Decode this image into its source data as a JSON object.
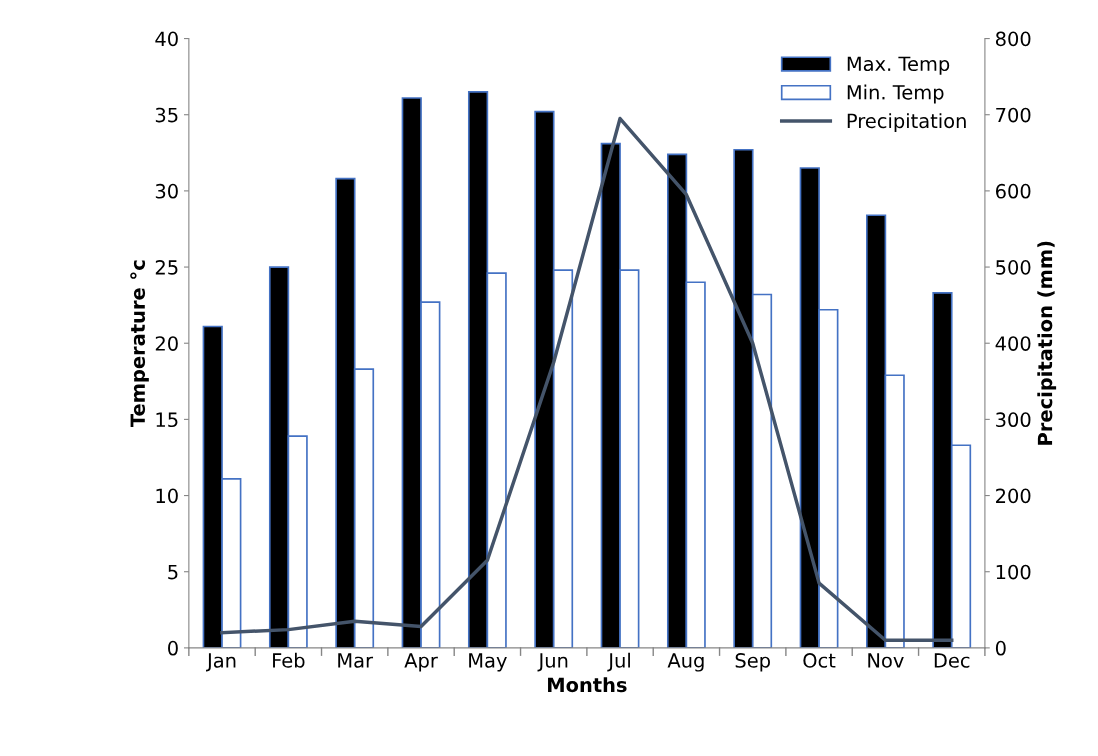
{
  "chart_data": {
    "type": "bar",
    "xlabel": "Months",
    "ylabel": "Temperature °c",
    "y2label": "Precipitation (mm)",
    "categories": [
      "Jan",
      "Feb",
      "Mar",
      "Apr",
      "May",
      "Jun",
      "Jul",
      "Aug",
      "Sep",
      "Oct",
      "Nov",
      "Dec"
    ],
    "series": [
      {
        "name": "Max. Temp",
        "color": "#000000",
        "values": [
          21.1,
          25.0,
          30.8,
          36.1,
          36.5,
          35.2,
          33.1,
          32.4,
          32.7,
          31.5,
          28.4,
          23.3
        ]
      },
      {
        "name": "Min. Temp",
        "color": "#ffffff",
        "values": [
          11.1,
          13.9,
          18.3,
          22.7,
          24.6,
          24.8,
          24.8,
          24.0,
          23.2,
          22.2,
          17.9,
          13.3
        ]
      },
      {
        "name": "Precipitation",
        "type": "line",
        "axis": "y2",
        "color": "#44546a",
        "values": [
          20,
          24,
          35,
          28,
          115,
          375,
          695,
          595,
          400,
          85,
          10,
          10
        ]
      }
    ],
    "ylim": [
      0,
      40
    ],
    "yticks": [
      0,
      5,
      10,
      15,
      20,
      25,
      30,
      35,
      40
    ],
    "y2lim": [
      0,
      800
    ],
    "y2ticks": [
      0,
      100,
      200,
      300,
      400,
      500,
      600,
      700,
      800
    ],
    "legend": "top right",
    "grid": false
  }
}
